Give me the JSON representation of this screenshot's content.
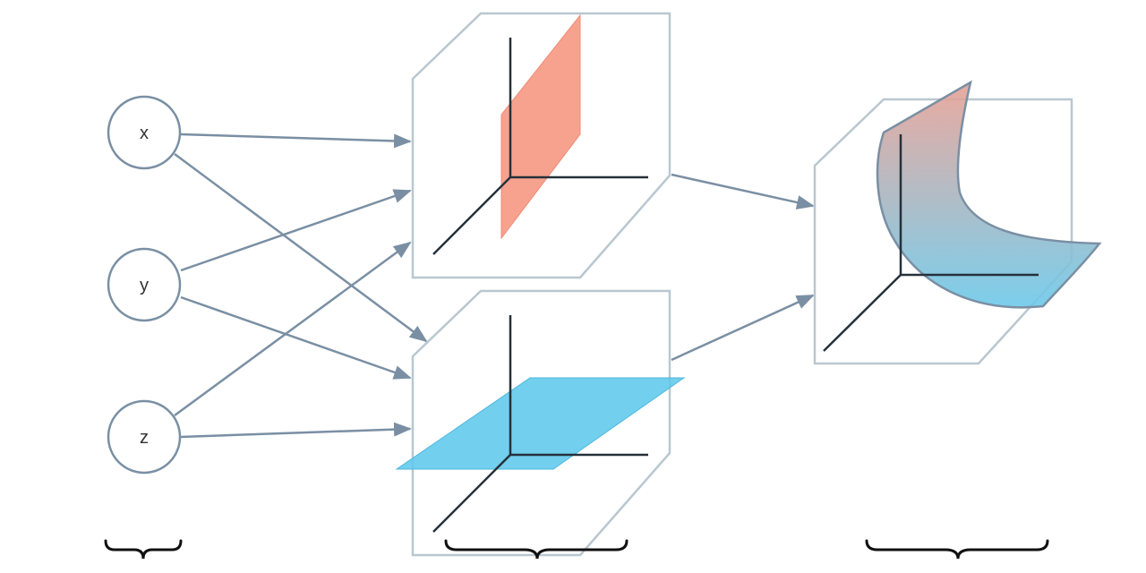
{
  "inputs": [
    {
      "id": "x",
      "label": "x"
    },
    {
      "id": "y",
      "label": "y"
    },
    {
      "id": "z",
      "label": "z"
    }
  ],
  "colors": {
    "node_stroke": "#7a8fa3",
    "arrow": "#7a8fa3",
    "panel_stroke": "#b9c7d0",
    "axis": "#25313b",
    "plane_red": "#f6957f",
    "plane_blue": "#5fc8ec",
    "surface_top": "#e8a195",
    "surface_bottom": "#6cc9ea"
  }
}
